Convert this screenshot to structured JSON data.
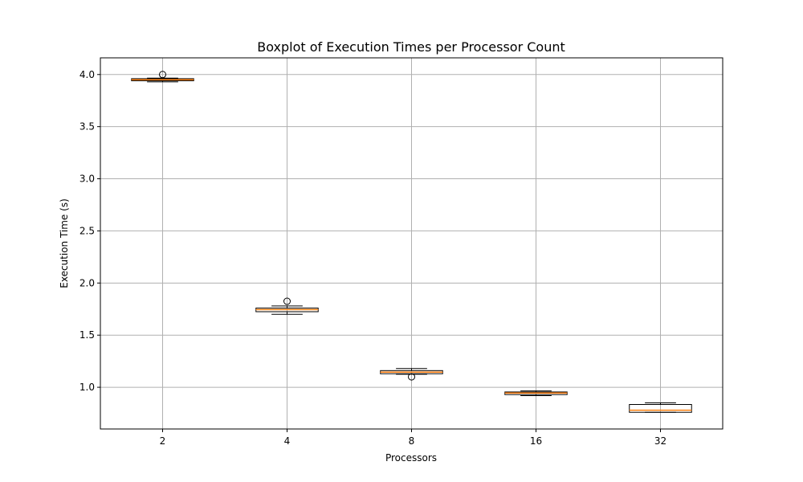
{
  "chart_data": {
    "type": "boxplot",
    "title": "Boxplot of Execution Times per Processor Count",
    "xlabel": "Processors",
    "ylabel": "Execution Time (s)",
    "categories": [
      "2",
      "4",
      "8",
      "16",
      "32"
    ],
    "ylim": [
      0.6,
      4.16
    ],
    "yticks": [
      1.0,
      1.5,
      2.0,
      2.5,
      3.0,
      3.5,
      4.0
    ],
    "ytick_labels": [
      "1.0",
      "1.5",
      "2.0",
      "2.5",
      "3.0",
      "3.5",
      "4.0"
    ],
    "grid": true,
    "boxes": [
      {
        "category": "2",
        "whisker_low": 3.93,
        "q1": 3.94,
        "median": 3.95,
        "q3": 3.96,
        "whisker_high": 3.965,
        "outliers": [
          4.0
        ]
      },
      {
        "category": "4",
        "whisker_low": 1.7,
        "q1": 1.725,
        "median": 1.745,
        "q3": 1.76,
        "whisker_high": 1.78,
        "outliers": [
          1.825
        ]
      },
      {
        "category": "8",
        "whisker_low": 1.125,
        "q1": 1.13,
        "median": 1.145,
        "q3": 1.16,
        "whisker_high": 1.18,
        "outliers": [
          1.1
        ]
      },
      {
        "category": "16",
        "whisker_low": 0.92,
        "q1": 0.93,
        "median": 0.945,
        "q3": 0.955,
        "whisker_high": 0.965,
        "outliers": []
      },
      {
        "category": "32",
        "whisker_low": 0.76,
        "q1": 0.76,
        "median": 0.78,
        "q3": 0.835,
        "whisker_high": 0.85,
        "outliers": []
      }
    ],
    "colors": {
      "box": "#000000",
      "median": "#ff7f0e",
      "grid": "#b0b0b0",
      "outlier": "#000000"
    }
  }
}
